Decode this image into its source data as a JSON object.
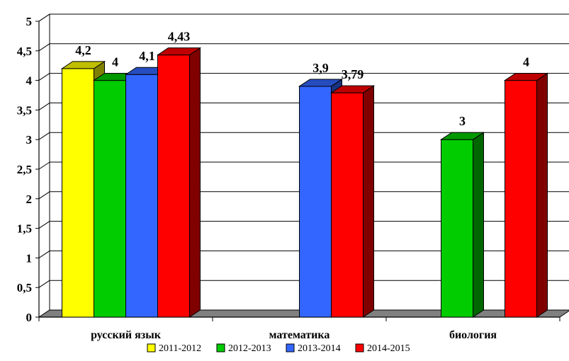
{
  "chart_data": {
    "type": "bar",
    "style": "3d-clustered-column",
    "categories": [
      "русский язык",
      "математика",
      "биология"
    ],
    "series": [
      {
        "name": "2011-2012",
        "color": "#FFFF00",
        "values": [
          4.2,
          null,
          null
        ],
        "labels": [
          "4,2",
          "",
          ""
        ]
      },
      {
        "name": "2012-2013",
        "color": "#00CC00",
        "values": [
          4,
          null,
          3
        ],
        "labels": [
          "4",
          "",
          "3"
        ]
      },
      {
        "name": "2013-2014",
        "color": "#3366FF",
        "values": [
          4.1,
          3.9,
          null
        ],
        "labels": [
          "4,1",
          "3,9",
          ""
        ]
      },
      {
        "name": "2014-2015",
        "color": "#FF0000",
        "values": [
          4.43,
          3.79,
          4
        ],
        "labels": [
          "4,43",
          "3,79",
          "4"
        ]
      }
    ],
    "yticks": [
      "0",
      "0,5",
      "1",
      "1,5",
      "2",
      "2,5",
      "3",
      "3,5",
      "4",
      "4,5",
      "5"
    ],
    "ylim": [
      0,
      5
    ],
    "title": "",
    "xlabel": "",
    "ylabel": "",
    "grid": true,
    "legend_position": "bottom"
  }
}
